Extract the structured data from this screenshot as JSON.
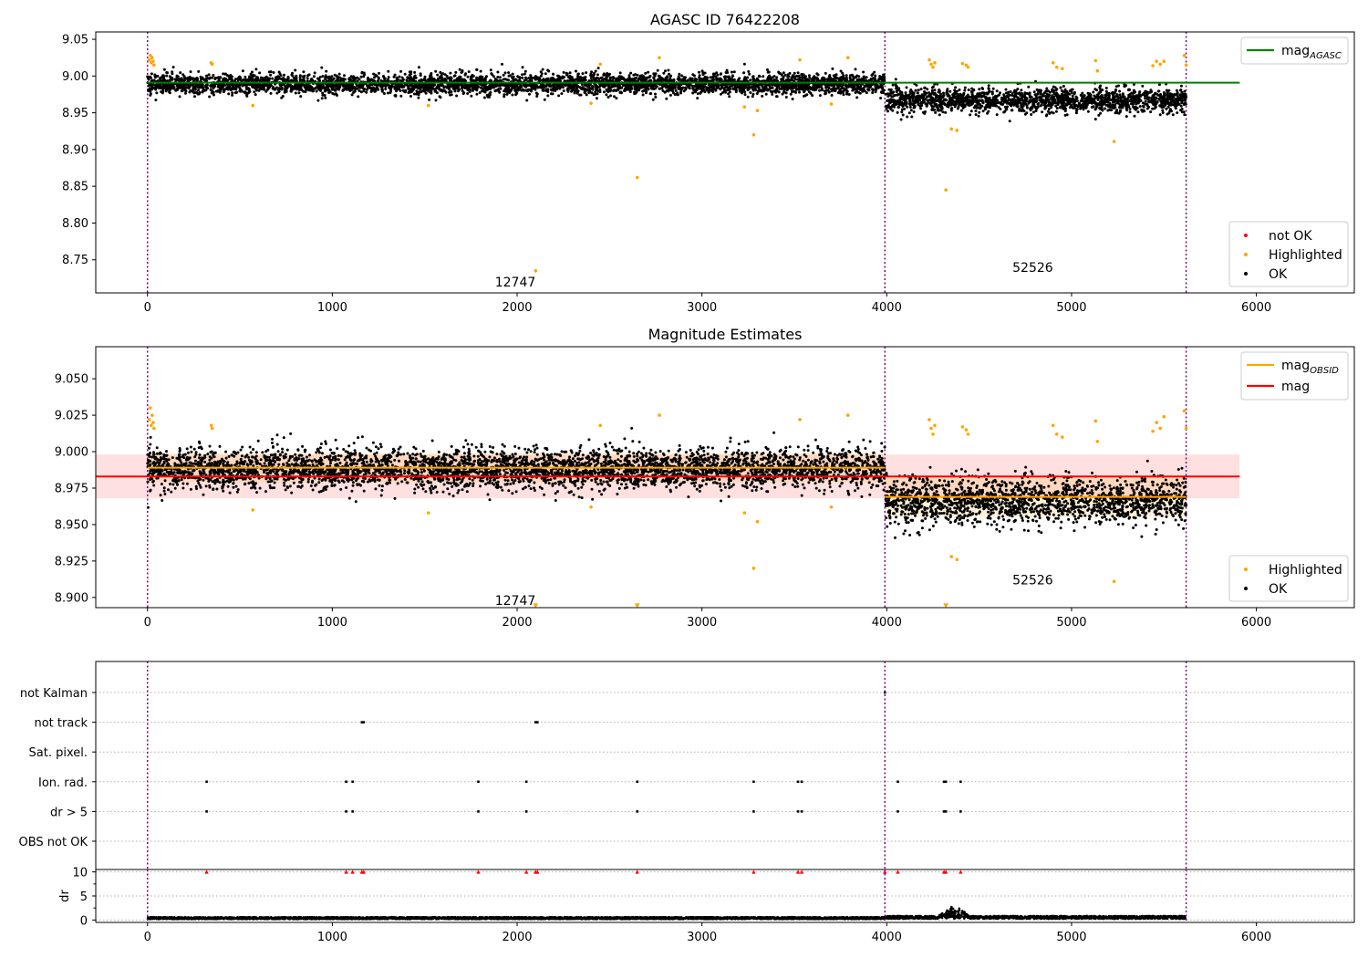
{
  "chart_data": [
    {
      "type": "scatter",
      "title": "AGASC ID 76422208",
      "xlim": [
        -280,
        6530
      ],
      "ylim": [
        8.705,
        9.06
      ],
      "x_ticks": [
        0,
        1000,
        2000,
        3000,
        4000,
        5000,
        6000
      ],
      "y_ticks": [
        8.75,
        8.8,
        8.85,
        8.9,
        8.95,
        9.0,
        9.05
      ],
      "y_tick_labels": [
        "8.75",
        "8.80",
        "8.85",
        "8.90",
        "8.95",
        "9.00",
        "9.05"
      ],
      "obs_boundaries": [
        0,
        3990,
        5620
      ],
      "obs_labels": [
        {
          "x": 1990,
          "y": 8.72,
          "text": "12747"
        },
        {
          "x": 4790,
          "y": 8.74,
          "text": "52526"
        }
      ],
      "lines": [
        {
          "name": "mag_AGASC",
          "label_main": "mag",
          "label_sub": "AGASC",
          "color": "#008000",
          "y": 8.991,
          "x0": 0,
          "x1": 5910
        }
      ],
      "legend_lines": [
        {
          "label_main": "mag",
          "label_sub": "AGASC",
          "color": "#008000"
        }
      ],
      "legend_points": [
        {
          "label": "not OK",
          "color": "#ff0000"
        },
        {
          "label": "Highlighted",
          "color": "#ffa500"
        },
        {
          "label": "OK",
          "color": "#000000"
        }
      ],
      "series": [
        {
          "name": "OK",
          "color": "#000000",
          "segments": [
            {
              "x0": 0,
              "x1": 3990,
              "center": 8.989,
              "spread": 0.011
            },
            {
              "x0": 3995,
              "x1": 5620,
              "center": 8.968,
              "spread": 0.013
            }
          ]
        },
        {
          "name": "Highlighted",
          "color": "#ffa500",
          "points": [
            [
              10,
              9.022
            ],
            [
              15,
              9.028
            ],
            [
              20,
              9.018
            ],
            [
              25,
              9.025
            ],
            [
              30,
              9.02
            ],
            [
              35,
              9.015
            ],
            [
              345,
              9.018
            ],
            [
              350,
              9.016
            ],
            [
              570,
              8.96
            ],
            [
              1520,
              8.96
            ],
            [
              2100,
              8.735
            ],
            [
              2400,
              8.963
            ],
            [
              2450,
              9.016
            ],
            [
              2650,
              8.862
            ],
            [
              2770,
              9.025
            ],
            [
              3230,
              8.958
            ],
            [
              3280,
              8.92
            ],
            [
              3300,
              8.953
            ],
            [
              3530,
              9.022
            ],
            [
              3700,
              8.962
            ],
            [
              3790,
              9.025
            ],
            [
              4230,
              9.022
            ],
            [
              4240,
              9.016
            ],
            [
              4250,
              9.012
            ],
            [
              4260,
              9.018
            ],
            [
              4320,
              8.845
            ],
            [
              4350,
              8.928
            ],
            [
              4380,
              8.926
            ],
            [
              4410,
              9.017
            ],
            [
              4430,
              9.015
            ],
            [
              4440,
              9.012
            ],
            [
              4900,
              9.018
            ],
            [
              4920,
              9.012
            ],
            [
              4950,
              9.01
            ],
            [
              5130,
              9.021
            ],
            [
              5140,
              9.007
            ],
            [
              5230,
              8.911
            ],
            [
              5440,
              9.014
            ],
            [
              5460,
              9.02
            ],
            [
              5480,
              9.016
            ],
            [
              5500,
              9.02
            ],
            [
              5610,
              9.028
            ],
            [
              5620,
              9.015
            ]
          ]
        }
      ]
    },
    {
      "type": "scatter",
      "title": "Magnitude Estimates",
      "xlim": [
        -280,
        6530
      ],
      "ylim": [
        8.893,
        9.072
      ],
      "x_ticks": [
        0,
        1000,
        2000,
        3000,
        4000,
        5000,
        6000
      ],
      "y_ticks": [
        8.9,
        8.925,
        8.95,
        8.975,
        9.0,
        9.025,
        9.05
      ],
      "y_tick_labels": [
        "8.900",
        "8.925",
        "8.950",
        "8.975",
        "9.000",
        "9.025",
        "9.050"
      ],
      "obs_boundaries": [
        0,
        3990,
        5620
      ],
      "obs_labels": [
        {
          "x": 1990,
          "y": 8.898,
          "text": "12747"
        },
        {
          "x": 4790,
          "y": 8.912,
          "text": "52526"
        }
      ],
      "bands": [
        {
          "name": "mag range",
          "color": "#ff0000",
          "opacity": 0.12,
          "y0": 8.968,
          "y1": 8.998,
          "x0": -280,
          "x1": 5910
        },
        {
          "name": "mag_OBSID range 1",
          "color": "#ffa500",
          "opacity": 0.15,
          "y0": 8.979,
          "y1": 8.999,
          "x0": 0,
          "x1": 3990
        },
        {
          "name": "mag_OBSID range 2",
          "color": "#ffa500",
          "opacity": 0.15,
          "y0": 8.955,
          "y1": 8.983,
          "x0": 3990,
          "x1": 5620
        }
      ],
      "lines": [
        {
          "name": "mag_OBSID 1",
          "label_main": "mag",
          "label_sub": "OBSID",
          "color": "#ffa500",
          "y": 8.989,
          "x0": 0,
          "x1": 3990
        },
        {
          "name": "mag_OBSID 2",
          "label_main": "mag",
          "label_sub": "OBSID",
          "color": "#ffa500",
          "y": 8.969,
          "x0": 3990,
          "x1": 5620
        },
        {
          "name": "mag",
          "label_main": "mag",
          "label_sub": "",
          "color": "#ff0000",
          "y": 8.983,
          "x0": -280,
          "x1": 5910
        }
      ],
      "legend_lines": [
        {
          "label_main": "mag",
          "label_sub": "OBSID",
          "color": "#ffa500"
        },
        {
          "label_main": "mag",
          "label_sub": "",
          "color": "#ff0000"
        }
      ],
      "legend_points": [
        {
          "label": "Highlighted",
          "color": "#ffa500"
        },
        {
          "label": "OK",
          "color": "#000000"
        }
      ],
      "series": [
        {
          "name": "OK",
          "color": "#000000",
          "segments": [
            {
              "x0": 0,
              "x1": 3990,
              "center": 8.988,
              "spread": 0.011
            },
            {
              "x0": 3995,
              "x1": 5620,
              "center": 8.966,
              "spread": 0.013
            }
          ]
        },
        {
          "name": "Highlighted",
          "color": "#ffa500",
          "points": [
            [
              10,
              9.022
            ],
            [
              15,
              9.03
            ],
            [
              20,
              9.018
            ],
            [
              25,
              9.025
            ],
            [
              30,
              9.02
            ],
            [
              35,
              9.016
            ],
            [
              345,
              9.018
            ],
            [
              350,
              9.016
            ],
            [
              570,
              8.96
            ],
            [
              1520,
              8.958
            ],
            [
              2400,
              8.962
            ],
            [
              2450,
              9.018
            ],
            [
              2770,
              9.025
            ],
            [
              3230,
              8.958
            ],
            [
              3280,
              8.92
            ],
            [
              3300,
              8.952
            ],
            [
              3530,
              9.022
            ],
            [
              3700,
              8.962
            ],
            [
              3790,
              9.025
            ],
            [
              4230,
              9.022
            ],
            [
              4240,
              9.016
            ],
            [
              4250,
              9.012
            ],
            [
              4260,
              9.018
            ],
            [
              4350,
              8.928
            ],
            [
              4380,
              8.926
            ],
            [
              4410,
              9.017
            ],
            [
              4430,
              9.015
            ],
            [
              4440,
              9.012
            ],
            [
              4900,
              9.018
            ],
            [
              4920,
              9.012
            ],
            [
              4950,
              9.01
            ],
            [
              5130,
              9.021
            ],
            [
              5140,
              9.007
            ],
            [
              5230,
              8.911
            ],
            [
              5440,
              9.014
            ],
            [
              5460,
              9.02
            ],
            [
              5480,
              9.016
            ],
            [
              5500,
              9.024
            ],
            [
              5610,
              9.028
            ],
            [
              5620,
              9.016
            ]
          ]
        },
        {
          "name": "Highlighted (below range)",
          "color": "#ffa500",
          "marker": "triangle-down",
          "points": [
            [
              2100,
              8.894
            ],
            [
              2650,
              8.894
            ],
            [
              4320,
              8.894
            ]
          ]
        }
      ]
    },
    {
      "type": "scatter",
      "title": "",
      "xlim": [
        -280,
        6530
      ],
      "x_ticks": [
        0,
        1000,
        2000,
        3000,
        4000,
        5000,
        6000
      ],
      "obs_boundaries": [
        0,
        3990,
        5620
      ],
      "flag_rows": [
        "not Kalman",
        "not track",
        "Sat. pixel.",
        "Ion. rad.",
        "dr > 5",
        "OBS not OK"
      ],
      "flags": {
        "not Kalman": [
          3990
        ],
        "not track": [
          1160,
          1170,
          2100,
          2110
        ],
        "Sat. pixel.": [],
        "Ion. rad.": [
          320,
          1075,
          1110,
          1790,
          2050,
          2650,
          3280,
          3520,
          3540,
          4060,
          4310,
          4320,
          4400
        ],
        "dr > 5": [
          320,
          1075,
          1110,
          1790,
          2050,
          2650,
          3280,
          3520,
          3540,
          4060,
          4310,
          4320,
          4400
        ],
        "OBS not OK": []
      },
      "dr": {
        "ylabel": "dr",
        "ylim": [
          -0.5,
          10.5
        ],
        "y_ticks": [
          0,
          5,
          10
        ],
        "clipped_color": "#ff0000",
        "clipped_value": 10,
        "clipped_x": [
          320,
          1075,
          1110,
          1160,
          1170,
          1790,
          2050,
          2100,
          2110,
          2650,
          3280,
          3520,
          3540,
          3990,
          4060,
          4310,
          4320,
          4400
        ],
        "typical": 0.4,
        "bump": {
          "x0": 4280,
          "x1": 4450,
          "peak": 2.0
        }
      }
    }
  ]
}
